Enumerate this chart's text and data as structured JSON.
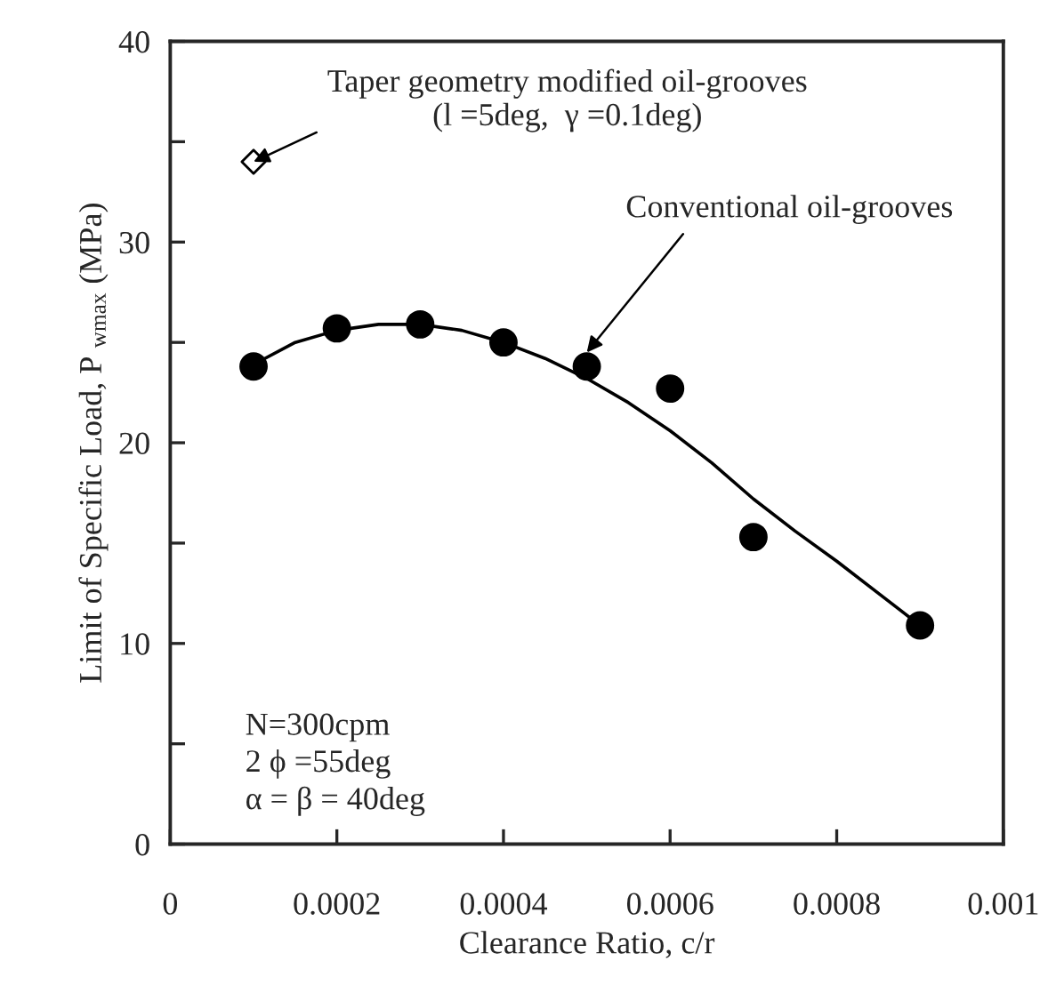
{
  "chart_data": {
    "type": "scatter",
    "xlabel": "Clearance Ratio, c/r",
    "ylabel": "Limit of Specific Load, P $_{wmax}$ (MPa)",
    "xlim": [
      0,
      0.001
    ],
    "ylim": [
      0,
      40
    ],
    "xticks": [
      0,
      0.0002,
      0.0004,
      0.0006,
      0.0008,
      0.001
    ],
    "yticks": [
      0,
      {
        "value": 5,
        "label": null
      },
      10,
      {
        "value": 15,
        "label": null
      },
      20,
      {
        "value": 25,
        "label": null
      },
      30,
      {
        "value": 35,
        "label": null
      },
      40
    ],
    "grid": false,
    "legend": false,
    "series": [
      {
        "marker": "circle",
        "color": "#000000",
        "x": [
          0.0001,
          0.0002,
          0.0003,
          0.0004,
          0.0005,
          0.0006,
          0.0007,
          0.0009
        ],
        "values": [
          23.8,
          25.7,
          25.9,
          25.0,
          23.8,
          22.7,
          15.3,
          10.9
        ]
      },
      {
        "marker": "diamond",
        "color": "#000000",
        "x": [
          0.0001
        ],
        "values": [
          34.0
        ]
      },
      {
        "type": "line",
        "marker": "none",
        "line_style": "solid",
        "color": "#000000",
        "x": [
          0.0001,
          0.00015,
          0.0002,
          0.00025,
          0.0003,
          0.00035,
          0.0004,
          0.00045,
          0.0005,
          0.00055,
          0.0006,
          0.00065,
          0.0007,
          0.00075,
          0.0008,
          0.00085,
          0.0009
        ],
        "values": [
          23.9,
          25.0,
          25.6,
          25.9,
          25.9,
          25.6,
          25.0,
          24.2,
          23.2,
          22.0,
          20.6,
          19.0,
          17.2,
          15.6,
          14.1,
          12.5,
          10.9
        ]
      }
    ],
    "annotations": [
      {
        "text": "Taper geometry modified oil-grooves\n(l =5deg,  γ =0.1deg)",
        "x": 0.0001,
        "y": 34.0
      },
      {
        "text": "Conventional oil-grooves",
        "x": 0.0005,
        "y": 24.5
      },
      "N=300cpm\n2 ϕ =55deg\nα = β = 40deg"
    ]
  }
}
